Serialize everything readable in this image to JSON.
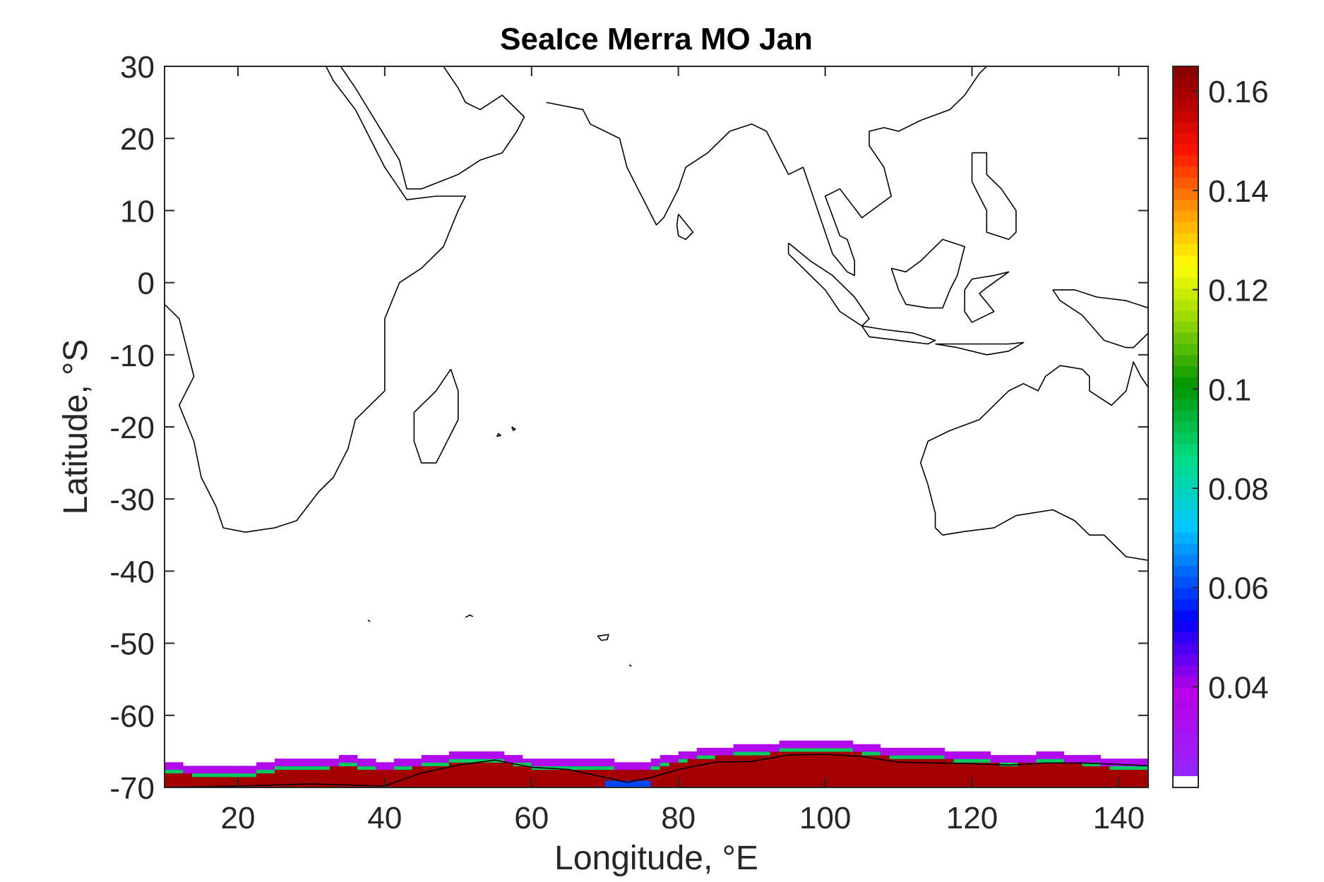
{
  "chart_data": {
    "type": "heatmap",
    "title": "SeaIce Merra MO Jan",
    "xlabel": "Longitude, °E",
    "ylabel": "Latitude, °S",
    "xlim": [
      10,
      144
    ],
    "ylim": [
      -70,
      30
    ],
    "xticks": [
      20,
      40,
      60,
      80,
      100,
      120,
      140
    ],
    "yticks": [
      30,
      20,
      10,
      0,
      -10,
      -20,
      -30,
      -40,
      -50,
      -60,
      -70
    ],
    "grid": false,
    "colorbar": {
      "colormap": "jet-like, with white below minimum",
      "range": [
        0.022,
        0.165
      ],
      "ticks": [
        0.04,
        0.06,
        0.08,
        0.1,
        0.12,
        0.14,
        0.16
      ],
      "tick_labels": [
        "0.04",
        "0.06",
        "0.08",
        "0.1",
        "0.12",
        "0.14",
        "0.16"
      ]
    },
    "sea_ice_band": {
      "value_typical": 0.16,
      "edge": [
        {
          "lon": 10,
          "north_lat": -66.8,
          "south_lat": -70.0
        },
        {
          "lon": 20,
          "north_lat": -67.5,
          "south_lat": -70.0
        },
        {
          "lon": 25,
          "north_lat": -66.5,
          "south_lat": -70.0
        },
        {
          "lon": 30,
          "north_lat": -66.3,
          "south_lat": -69.8
        },
        {
          "lon": 35,
          "north_lat": -65.9,
          "south_lat": -69.6
        },
        {
          "lon": 40,
          "north_lat": -66.6,
          "south_lat": -69.9
        },
        {
          "lon": 45,
          "north_lat": -66.0,
          "south_lat": -68.4
        },
        {
          "lon": 50,
          "north_lat": -65.4,
          "south_lat": -67.3
        },
        {
          "lon": 55,
          "north_lat": -65.3,
          "south_lat": -66.7
        },
        {
          "lon": 60,
          "north_lat": -66.1,
          "south_lat": -67.7
        },
        {
          "lon": 65,
          "north_lat": -66.3,
          "south_lat": -67.9
        },
        {
          "lon": 70,
          "north_lat": -66.4,
          "south_lat": -69.1
        },
        {
          "lon": 73,
          "north_lat": -66.6,
          "south_lat": -69.6
        },
        {
          "lon": 76,
          "north_lat": -66.6,
          "south_lat": -69.2
        },
        {
          "lon": 80,
          "north_lat": -65.4,
          "south_lat": -67.9
        },
        {
          "lon": 85,
          "north_lat": -64.6,
          "south_lat": -66.7
        },
        {
          "lon": 90,
          "north_lat": -64.4,
          "south_lat": -66.6
        },
        {
          "lon": 95,
          "north_lat": -63.8,
          "south_lat": -65.8
        },
        {
          "lon": 100,
          "north_lat": -63.7,
          "south_lat": -65.7
        },
        {
          "lon": 105,
          "north_lat": -64.1,
          "south_lat": -65.9
        },
        {
          "lon": 110,
          "north_lat": -64.8,
          "south_lat": -66.8
        },
        {
          "lon": 115,
          "north_lat": -64.9,
          "south_lat": -66.8
        },
        {
          "lon": 120,
          "north_lat": -65.3,
          "south_lat": -66.9
        },
        {
          "lon": 125,
          "north_lat": -65.7,
          "south_lat": -67.2
        },
        {
          "lon": 130,
          "north_lat": -65.4,
          "south_lat": -66.8
        },
        {
          "lon": 135,
          "north_lat": -65.6,
          "south_lat": -66.8
        },
        {
          "lon": 140,
          "north_lat": -66.3,
          "south_lat": -67.0
        },
        {
          "lon": 144,
          "north_lat": -66.4,
          "south_lat": -67.0
        }
      ]
    },
    "coastlines": {
      "africa": [
        [
          10,
          -3
        ],
        [
          12,
          -5
        ],
        [
          13,
          -9
        ],
        [
          14,
          -13
        ],
        [
          12,
          -17
        ],
        [
          14,
          -22
        ],
        [
          15,
          -27
        ],
        [
          17,
          -31
        ],
        [
          18,
          -34
        ],
        [
          21,
          -34.6
        ],
        [
          25,
          -34
        ],
        [
          28,
          -33
        ],
        [
          31,
          -29
        ],
        [
          33,
          -27
        ],
        [
          35,
          -23
        ],
        [
          36,
          -19
        ],
        [
          40,
          -15
        ],
        [
          40,
          -10
        ],
        [
          40,
          -5
        ],
        [
          42,
          0
        ],
        [
          45,
          2
        ],
        [
          48,
          5
        ],
        [
          50,
          10
        ],
        [
          51,
          12
        ],
        [
          47,
          12
        ],
        [
          43,
          11.5
        ],
        [
          42,
          13
        ],
        [
          40,
          16
        ],
        [
          38,
          20
        ],
        [
          36,
          24
        ],
        [
          33,
          28
        ],
        [
          32,
          30
        ]
      ],
      "arabia": [
        [
          34,
          30
        ],
        [
          36,
          27
        ],
        [
          39,
          22
        ],
        [
          42,
          17
        ],
        [
          43,
          13
        ],
        [
          45,
          13
        ],
        [
          50,
          15
        ],
        [
          53,
          17
        ],
        [
          56,
          18
        ],
        [
          58,
          21
        ],
        [
          59,
          23
        ],
        [
          56,
          26
        ],
        [
          53,
          24
        ],
        [
          51,
          25
        ],
        [
          50,
          27
        ],
        [
          48,
          30
        ]
      ],
      "india": [
        [
          62,
          25
        ],
        [
          67,
          24
        ],
        [
          68,
          22
        ],
        [
          70,
          21
        ],
        [
          72,
          20
        ],
        [
          73,
          16
        ],
        [
          75,
          12
        ],
        [
          77,
          8
        ],
        [
          78,
          9
        ],
        [
          80,
          13
        ],
        [
          81,
          16
        ],
        [
          84,
          18
        ],
        [
          87,
          21
        ],
        [
          90,
          22
        ],
        [
          92,
          21
        ],
        [
          93,
          19
        ],
        [
          94,
          17
        ],
        [
          95,
          15
        ],
        [
          97,
          16
        ],
        [
          98,
          13
        ],
        [
          99,
          10
        ],
        [
          100,
          7
        ],
        [
          101,
          4
        ],
        [
          103,
          1.5
        ],
        [
          104,
          1
        ],
        [
          104,
          3
        ],
        [
          103,
          6
        ],
        [
          102,
          6.5
        ],
        [
          100,
          12
        ],
        [
          102,
          13
        ],
        [
          105,
          9
        ],
        [
          109,
          12
        ],
        [
          108,
          16
        ],
        [
          106,
          19
        ],
        [
          106,
          21
        ],
        [
          108,
          21.5
        ],
        [
          110,
          21
        ],
        [
          113,
          22.5
        ],
        [
          117,
          24
        ],
        [
          119,
          26
        ],
        [
          121,
          29
        ],
        [
          122,
          30
        ]
      ],
      "madagascar": [
        [
          49,
          -12
        ],
        [
          50,
          -15
        ],
        [
          50,
          -19
        ],
        [
          48,
          -23
        ],
        [
          47,
          -25
        ],
        [
          45,
          -25
        ],
        [
          44,
          -22
        ],
        [
          44,
          -18
        ],
        [
          47,
          -15
        ],
        [
          49,
          -12
        ]
      ],
      "sri_lanka": [
        [
          80,
          9.5
        ],
        [
          82,
          7
        ],
        [
          81,
          6
        ],
        [
          80,
          6.5
        ],
        [
          79.8,
          8
        ],
        [
          80,
          9.5
        ]
      ],
      "sumatra": [
        [
          95,
          5.5
        ],
        [
          98,
          3
        ],
        [
          101,
          1
        ],
        [
          104,
          -2
        ],
        [
          106,
          -5
        ],
        [
          105,
          -6
        ],
        [
          102,
          -4
        ],
        [
          100,
          -1
        ],
        [
          98,
          1
        ],
        [
          95,
          4
        ],
        [
          95,
          5.5
        ]
      ],
      "java": [
        [
          105,
          -6
        ],
        [
          108,
          -6.5
        ],
        [
          112,
          -7
        ],
        [
          115,
          -8
        ],
        [
          114,
          -8.5
        ],
        [
          110,
          -8
        ],
        [
          106,
          -7.5
        ],
        [
          105,
          -6
        ]
      ],
      "lesser_sunda": [
        [
          115,
          -8.5
        ],
        [
          118,
          -8.5
        ],
        [
          122,
          -8.5
        ],
        [
          125,
          -8.5
        ],
        [
          127,
          -8.3
        ],
        [
          125,
          -9.5
        ],
        [
          122,
          -10
        ],
        [
          118,
          -9
        ],
        [
          115,
          -8.5
        ]
      ],
      "borneo": [
        [
          109,
          2
        ],
        [
          111,
          1.5
        ],
        [
          113,
          3
        ],
        [
          116,
          6
        ],
        [
          119,
          5
        ],
        [
          118,
          1
        ],
        [
          117,
          -1
        ],
        [
          116,
          -3.5
        ],
        [
          114,
          -3.5
        ],
        [
          111,
          -3
        ],
        [
          110,
          -1
        ],
        [
          109,
          2
        ]
      ],
      "sulawesi": [
        [
          119,
          -1
        ],
        [
          120,
          0.5
        ],
        [
          123,
          1
        ],
        [
          125,
          1.5
        ],
        [
          122,
          -0.7
        ],
        [
          121,
          -1.5
        ],
        [
          123,
          -4
        ],
        [
          121,
          -5
        ],
        [
          120,
          -5.5
        ],
        [
          119,
          -4
        ],
        [
          119,
          -1
        ]
      ],
      "philippines": [
        [
          120,
          18
        ],
        [
          122,
          18
        ],
        [
          122,
          15
        ],
        [
          124,
          13
        ],
        [
          126,
          10
        ],
        [
          126,
          7
        ],
        [
          125,
          6
        ],
        [
          122,
          7
        ],
        [
          122,
          10
        ],
        [
          120,
          14
        ],
        [
          120,
          18
        ]
      ],
      "new_guinea": [
        [
          131,
          -1
        ],
        [
          134,
          -1
        ],
        [
          137,
          -2
        ],
        [
          141,
          -2.5
        ],
        [
          144,
          -3.5
        ],
        [
          144,
          -7
        ],
        [
          142,
          -9
        ],
        [
          141,
          -9
        ],
        [
          138,
          -8
        ],
        [
          135,
          -4.5
        ],
        [
          132,
          -2.5
        ],
        [
          131,
          -1
        ]
      ],
      "australia": [
        [
          144,
          -38.5
        ],
        [
          141,
          -38
        ],
        [
          138,
          -35
        ],
        [
          136,
          -35
        ],
        [
          134,
          -33
        ],
        [
          131,
          -31.5
        ],
        [
          126,
          -32.3
        ],
        [
          123,
          -34
        ],
        [
          119,
          -34.5
        ],
        [
          116,
          -35
        ],
        [
          115,
          -34
        ],
        [
          115,
          -32
        ],
        [
          114,
          -28
        ],
        [
          113,
          -25
        ],
        [
          114,
          -22
        ],
        [
          117,
          -20.5
        ],
        [
          121,
          -19
        ],
        [
          123,
          -17
        ],
        [
          125,
          -15
        ],
        [
          127,
          -14
        ],
        [
          129,
          -15
        ],
        [
          130,
          -13
        ],
        [
          132,
          -11.5
        ],
        [
          135,
          -12
        ],
        [
          136,
          -13
        ],
        [
          136,
          -15
        ],
        [
          139,
          -17
        ],
        [
          141,
          -15
        ],
        [
          142,
          -11
        ],
        [
          143,
          -13
        ],
        [
          144,
          -14.5
        ]
      ],
      "antarctica": [
        [
          10,
          -70
        ],
        [
          20,
          -69.8
        ],
        [
          30,
          -69.5
        ],
        [
          40,
          -69.8
        ],
        [
          45,
          -68
        ],
        [
          50,
          -66.9
        ],
        [
          55,
          -66.2
        ],
        [
          60,
          -67.2
        ],
        [
          65,
          -67.5
        ],
        [
          70,
          -68.6
        ],
        [
          73,
          -69.3
        ],
        [
          76,
          -68.7
        ],
        [
          80,
          -67.5
        ],
        [
          85,
          -66.5
        ],
        [
          90,
          -66.4
        ],
        [
          95,
          -65.5
        ],
        [
          100,
          -65.4
        ],
        [
          105,
          -65.7
        ],
        [
          110,
          -66.5
        ],
        [
          115,
          -66.6
        ],
        [
          120,
          -66.7
        ],
        [
          125,
          -66.9
        ],
        [
          130,
          -66.6
        ],
        [
          135,
          -66.6
        ],
        [
          140,
          -66.8
        ],
        [
          144,
          -67
        ]
      ],
      "islands": [
        [
          [
            51,
            -46.4
          ],
          [
            51.6,
            -46.1
          ],
          [
            52,
            -46.3
          ]
        ],
        [
          [
            37.7,
            -46.8
          ],
          [
            38,
            -47
          ]
        ],
        [
          [
            69,
            -49
          ],
          [
            70.5,
            -48.8
          ],
          [
            70.3,
            -49.5
          ],
          [
            69.5,
            -49.6
          ],
          [
            69,
            -49
          ]
        ],
        [
          [
            73.3,
            -53
          ],
          [
            73.6,
            -53.2
          ]
        ],
        [
          [
            55.5,
            -20.9
          ],
          [
            55.8,
            -21.2
          ],
          [
            55.3,
            -21.3
          ],
          [
            55.5,
            -20.9
          ]
        ],
        [
          [
            57.3,
            -20
          ],
          [
            57.8,
            -20.3
          ],
          [
            57.5,
            -20.5
          ],
          [
            57.3,
            -20
          ]
        ]
      ]
    }
  }
}
